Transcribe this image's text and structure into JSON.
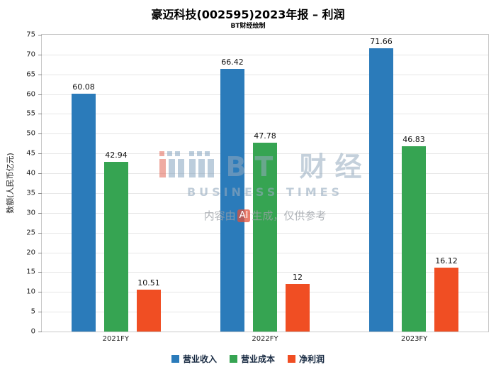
{
  "title": "豪迈科技(002595)2023年报 – 利润",
  "subtitle": "BT财经绘制",
  "watermark": {
    "brand": "BT 财经",
    "subbrand": "BUSINESS TIMES",
    "note_prefix": "内容由",
    "note_ai": "AI",
    "note_suffix": "生成，仅供参考"
  },
  "chart_data": {
    "type": "bar",
    "title": "豪迈科技(002595)2023年报 – 利润",
    "subtitle": "BT财经绘制",
    "categories": [
      "2021FY",
      "2022FY",
      "2023FY"
    ],
    "series": [
      {
        "name": "营业收入",
        "color": "#2b7bba",
        "values": [
          60.08,
          66.42,
          71.66
        ]
      },
      {
        "name": "营业成本",
        "color": "#36a452",
        "values": [
          42.94,
          47.78,
          46.83
        ]
      },
      {
        "name": "净利润",
        "color": "#f04e23",
        "values": [
          10.51,
          12,
          16.12
        ]
      }
    ],
    "xlabel": "",
    "ylabel": "数额(人民币亿元)",
    "ylim": [
      0,
      75
    ],
    "ytick_step": 5,
    "grid": true,
    "legend_position": "bottom"
  }
}
